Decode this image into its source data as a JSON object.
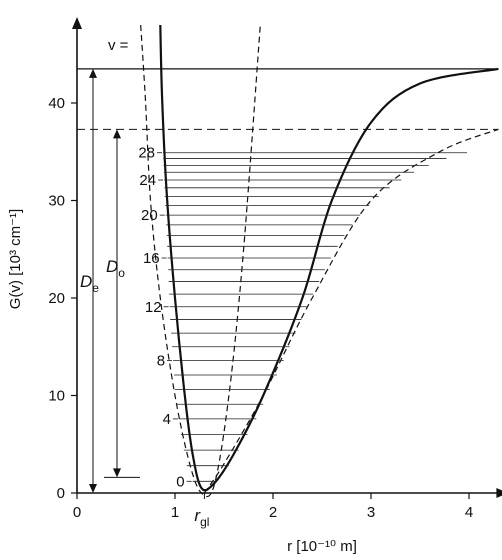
{
  "chart_data": {
    "type": "line",
    "xlabel": "r [10⁻¹⁰ m]",
    "ylabel": "G(v) [10³ cm⁻¹]",
    "xlim": [
      0,
      4.3
    ],
    "ylim": [
      0,
      48
    ],
    "x_ticks": [
      {
        "value": 0,
        "label": "0"
      },
      {
        "value": 1,
        "label": "1"
      },
      {
        "value": 2,
        "label": "2"
      },
      {
        "value": 3,
        "label": "3"
      },
      {
        "value": 4,
        "label": "4"
      }
    ],
    "y_ticks": [
      {
        "value": 0,
        "label": "0"
      },
      {
        "value": 10,
        "label": "10"
      },
      {
        "value": 20,
        "label": "20"
      },
      {
        "value": 30,
        "label": "30"
      },
      {
        "value": 40,
        "label": "40"
      }
    ],
    "series": [
      {
        "style": "solid",
        "description_points": [
          [
            0.85,
            48
          ],
          [
            0.87,
            40
          ],
          [
            0.92,
            30
          ],
          [
            1.0,
            20
          ],
          [
            1.1,
            10
          ],
          [
            1.18,
            4
          ],
          [
            1.27,
            0.5
          ],
          [
            1.4,
            1
          ],
          [
            1.6,
            4
          ],
          [
            1.9,
            10
          ],
          [
            2.3,
            20
          ],
          [
            2.6,
            30
          ],
          [
            3.0,
            38
          ],
          [
            3.5,
            42
          ],
          [
            4.3,
            43.5
          ]
        ]
      },
      {
        "style": "dashed",
        "description_points": [
          [
            0.65,
            48
          ],
          [
            0.7,
            40
          ],
          [
            0.75,
            30
          ],
          [
            0.85,
            20
          ],
          [
            1.0,
            10
          ],
          [
            1.15,
            3
          ],
          [
            1.27,
            0
          ],
          [
            1.4,
            0.8
          ],
          [
            1.55,
            10
          ],
          [
            1.7,
            25
          ],
          [
            1.87,
            48
          ]
        ]
      },
      {
        "style": "dashed",
        "description_points": [
          [
            1.3,
            0
          ],
          [
            1.5,
            3
          ],
          [
            1.9,
            10
          ],
          [
            2.4,
            20
          ],
          [
            3.0,
            30
          ],
          [
            3.7,
            35
          ],
          [
            4.3,
            37.3
          ]
        ]
      }
    ],
    "reference_lines": {
      "De_level": 43.5,
      "D0_level": 37.3,
      "zero_point_level": 1.6
    },
    "vibrational_levels": [
      {
        "v": 0,
        "G": 1.2,
        "r_left": 1.18,
        "r_right": 1.42
      },
      {
        "v": 1,
        "G": 2.8,
        "r_left": 1.12,
        "r_right": 1.55
      },
      {
        "v": 2,
        "G": 4.4,
        "r_left": 1.09,
        "r_right": 1.65
      },
      {
        "v": 3,
        "G": 6.0,
        "r_left": 1.06,
        "r_right": 1.74
      },
      {
        "v": 4,
        "G": 7.6,
        "r_left": 1.04,
        "r_right": 1.83
      },
      {
        "v": 5,
        "G": 9.1,
        "r_left": 1.02,
        "r_right": 1.9
      },
      {
        "v": 6,
        "G": 10.6,
        "r_left": 1.0,
        "r_right": 1.97
      },
      {
        "v": 7,
        "G": 12.1,
        "r_left": 0.99,
        "r_right": 2.04
      },
      {
        "v": 8,
        "G": 13.6,
        "r_left": 0.98,
        "r_right": 2.11
      },
      {
        "v": 9,
        "G": 15.0,
        "r_left": 0.97,
        "r_right": 2.17
      },
      {
        "v": 10,
        "G": 16.4,
        "r_left": 0.96,
        "r_right": 2.23
      },
      {
        "v": 11,
        "G": 17.8,
        "r_left": 0.95,
        "r_right": 2.29
      },
      {
        "v": 12,
        "G": 19.1,
        "r_left": 0.945,
        "r_right": 2.35
      },
      {
        "v": 13,
        "G": 20.4,
        "r_left": 0.94,
        "r_right": 2.41
      },
      {
        "v": 14,
        "G": 21.7,
        "r_left": 0.935,
        "r_right": 2.47
      },
      {
        "v": 15,
        "G": 22.9,
        "r_left": 0.93,
        "r_right": 2.53
      },
      {
        "v": 16,
        "G": 24.1,
        "r_left": 0.925,
        "r_right": 2.59
      },
      {
        "v": 17,
        "G": 25.3,
        "r_left": 0.92,
        "r_right": 2.66
      },
      {
        "v": 18,
        "G": 26.4,
        "r_left": 0.915,
        "r_right": 2.73
      },
      {
        "v": 19,
        "G": 27.5,
        "r_left": 0.91,
        "r_right": 2.81
      },
      {
        "v": 20,
        "G": 28.5,
        "r_left": 0.905,
        "r_right": 2.89
      },
      {
        "v": 21,
        "G": 29.5,
        "r_left": 0.9,
        "r_right": 2.98
      },
      {
        "v": 22,
        "G": 30.4,
        "r_left": 0.895,
        "r_right": 3.08
      },
      {
        "v": 23,
        "G": 31.3,
        "r_left": 0.892,
        "r_right": 3.19
      },
      {
        "v": 24,
        "G": 32.1,
        "r_left": 0.889,
        "r_right": 3.31
      },
      {
        "v": 25,
        "G": 32.9,
        "r_left": 0.886,
        "r_right": 3.44
      },
      {
        "v": 26,
        "G": 33.6,
        "r_left": 0.883,
        "r_right": 3.59
      },
      {
        "v": 27,
        "G": 34.3,
        "r_left": 0.88,
        "r_right": 3.77
      },
      {
        "v": 28,
        "G": 34.9,
        "r_left": 0.878,
        "r_right": 3.98
      }
    ],
    "level_labels": [
      {
        "v": 0,
        "label": "0"
      },
      {
        "v": 4,
        "label": "4"
      },
      {
        "v": 8,
        "label": "8"
      },
      {
        "v": 12,
        "label": "12"
      },
      {
        "v": 16,
        "label": "16"
      },
      {
        "v": 20,
        "label": "20"
      },
      {
        "v": 24,
        "label": "24"
      },
      {
        "v": 28,
        "label": "28"
      }
    ],
    "annotations": {
      "v_label": "v =",
      "De_label": "De",
      "D0_label": "Do",
      "r_label": "rgl"
    }
  }
}
